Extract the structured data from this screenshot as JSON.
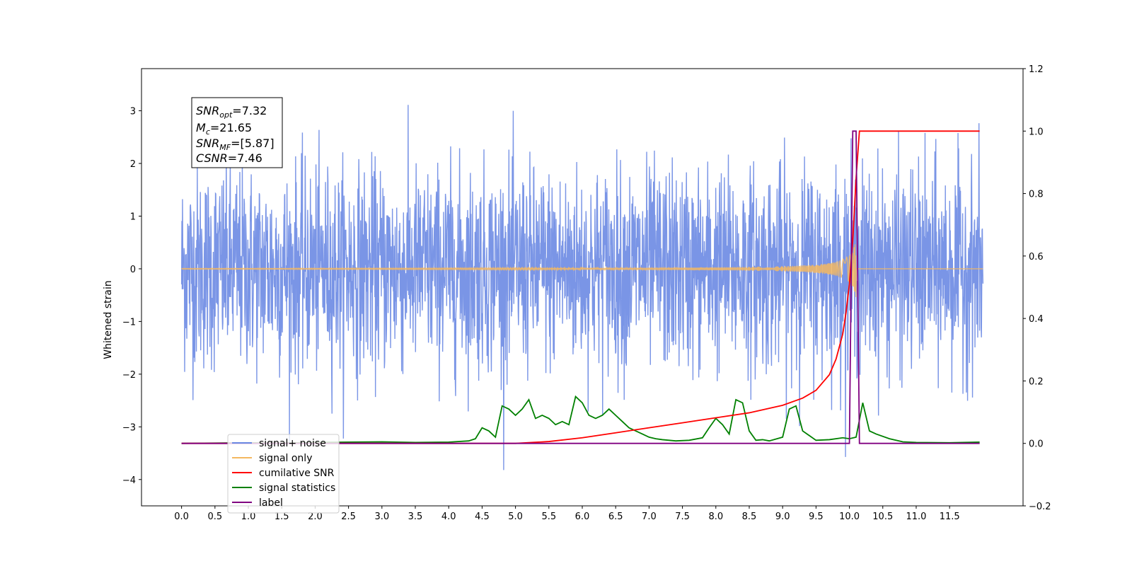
{
  "chart_data": {
    "type": "line",
    "xlabel": "",
    "ylabel": "Whitened strain",
    "xlim": [
      -0.6,
      12.6
    ],
    "ylim": [
      -4.5,
      3.8
    ],
    "y2lim": [
      -0.2,
      1.2
    ],
    "grid": false,
    "legend_position": "bottom-left",
    "x_ticks": [
      "0.0",
      "0.5",
      "1.0",
      "1.5",
      "2.0",
      "2.5",
      "3.0",
      "3.5",
      "4.0",
      "4.5",
      "5.0",
      "5.5",
      "6.0",
      "6.5",
      "7.0",
      "7.5",
      "8.0",
      "8.5",
      "9.0",
      "9.5",
      "10.0",
      "10.5",
      "11.0",
      "11.5"
    ],
    "y_ticks": [
      "3",
      "2",
      "1",
      "0",
      "−1",
      "−2",
      "−3",
      "−4"
    ],
    "y2_ticks": [
      "1.2",
      "1.0",
      "0.8",
      "0.6",
      "0.4",
      "0.2",
      "0.0",
      "−0.2"
    ],
    "annotation": {
      "snr_opt": {
        "base": "SNR",
        "sub": "opt",
        "value": "=7.32"
      },
      "mc": {
        "base": "M",
        "sub": "c",
        "value": "=21.65"
      },
      "snr_mf": {
        "base": "SNR",
        "sub": "MF",
        "value": "=[5.87]"
      },
      "csnr": {
        "base": "CSNR",
        "value": "=7.46"
      }
    },
    "series": [
      {
        "name": "signal+ noise",
        "color": "#6b89e3",
        "axis": "left",
        "style": "noise",
        "x_range": [
          0.0,
          12.0
        ],
        "std": 0.95
      },
      {
        "name": "signal only",
        "color": "#f4b860",
        "axis": "left",
        "style": "chirp",
        "merger_time": 10.1,
        "peak_amplitude": 0.55
      },
      {
        "name": "cumilative SNR",
        "color": "#ff0000",
        "axis": "right",
        "x": [
          0.0,
          5.0,
          5.5,
          6.0,
          6.5,
          7.0,
          7.5,
          8.0,
          8.5,
          9.0,
          9.3,
          9.5,
          9.7,
          9.8,
          9.9,
          9.95,
          10.0,
          10.05,
          10.1,
          10.15,
          11.95
        ],
        "y": [
          0.0,
          0.0,
          0.006,
          0.018,
          0.034,
          0.05,
          0.066,
          0.082,
          0.098,
          0.122,
          0.145,
          0.17,
          0.22,
          0.27,
          0.35,
          0.42,
          0.51,
          0.65,
          0.85,
          1.0,
          1.0
        ]
      },
      {
        "name": "signal statistics",
        "color": "#008000",
        "axis": "right",
        "x": [
          0.0,
          0.5,
          1.0,
          1.5,
          2.0,
          2.5,
          3.0,
          3.5,
          4.0,
          4.3,
          4.4,
          4.5,
          4.6,
          4.7,
          4.8,
          4.9,
          5.0,
          5.1,
          5.2,
          5.3,
          5.4,
          5.5,
          5.6,
          5.7,
          5.8,
          5.9,
          6.0,
          6.1,
          6.2,
          6.3,
          6.4,
          6.5,
          6.6,
          6.7,
          6.8,
          6.9,
          7.0,
          7.1,
          7.2,
          7.4,
          7.6,
          7.8,
          7.9,
          8.0,
          8.1,
          8.2,
          8.3,
          8.4,
          8.5,
          8.6,
          8.7,
          8.8,
          9.0,
          9.1,
          9.2,
          9.3,
          9.5,
          9.7,
          9.9,
          10.0,
          10.1,
          10.2,
          10.3,
          10.4,
          10.6,
          10.8,
          11.0,
          11.5,
          11.95
        ],
        "y": [
          0.0,
          0.001,
          0.002,
          0.001,
          0.003,
          0.004,
          0.005,
          0.003,
          0.004,
          0.008,
          0.015,
          0.05,
          0.04,
          0.02,
          0.12,
          0.11,
          0.09,
          0.11,
          0.14,
          0.08,
          0.09,
          0.08,
          0.06,
          0.07,
          0.06,
          0.15,
          0.13,
          0.09,
          0.08,
          0.09,
          0.11,
          0.09,
          0.07,
          0.05,
          0.04,
          0.03,
          0.02,
          0.015,
          0.012,
          0.008,
          0.01,
          0.018,
          0.05,
          0.08,
          0.06,
          0.03,
          0.14,
          0.13,
          0.04,
          0.01,
          0.012,
          0.008,
          0.02,
          0.11,
          0.12,
          0.04,
          0.01,
          0.012,
          0.018,
          0.015,
          0.02,
          0.13,
          0.04,
          0.03,
          0.015,
          0.005,
          0.003,
          0.002,
          0.004
        ]
      },
      {
        "name": "label",
        "color": "#800080",
        "axis": "right",
        "x": [
          0.0,
          10.0,
          10.05,
          10.1,
          10.15,
          11.95
        ],
        "y": [
          0.0,
          0.0,
          1.0,
          1.0,
          0.0,
          0.0
        ]
      }
    ]
  }
}
